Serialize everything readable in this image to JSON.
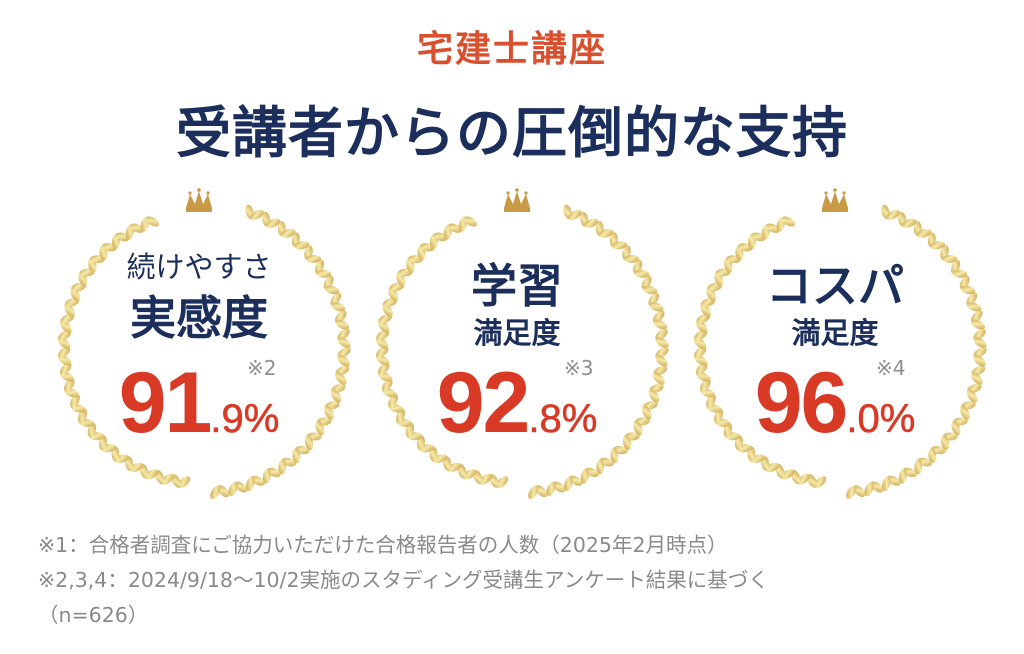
{
  "header": {
    "eyebrow": "宅建士講座",
    "headline": "受講者からの圧倒的な支持"
  },
  "colors": {
    "eyebrow": "#d9502f",
    "headline": "#1c2f5c",
    "percent": "#d83a26",
    "note": "#8e8e8e",
    "gold_dark": "#c99a45",
    "gold_light": "#f4eaa8"
  },
  "badges": [
    {
      "line1": "続けやすさ",
      "line2": "実感度",
      "note": "※2",
      "value_int": "91",
      "value_dec": ".9%",
      "icon": "crown-icon"
    },
    {
      "line1": "学習",
      "line2": "満足度",
      "note": "※3",
      "value_int": "92",
      "value_dec": ".8%",
      "icon": "crown-icon"
    },
    {
      "line1": "コスパ",
      "line2": "満足度",
      "note": "※4",
      "value_int": "96",
      "value_dec": ".0%",
      "icon": "crown-icon"
    }
  ],
  "footnotes": [
    "※1：合格者調査にご協力いただけた合格報告者の人数（2025年2月時点）",
    "※2,3,4：2024/9/18〜10/2実施のスタディング受講生アンケート結果に基づく",
    "（n=626）"
  ]
}
